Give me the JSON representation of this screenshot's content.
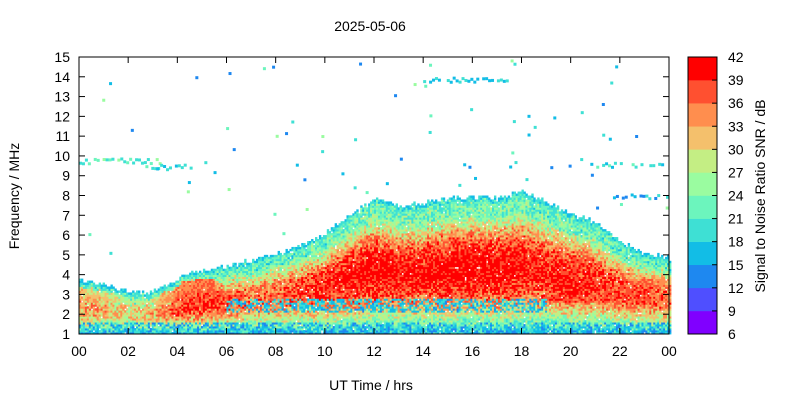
{
  "chart_data": {
    "type": "heatmap",
    "title": "2025-05-06",
    "xlabel": "UT Time / hrs",
    "ylabel": "Frequency / MHz",
    "colorbar_label": "Signal to Noise Ratio SNR / dB",
    "xlim": [
      0,
      24
    ],
    "ylim": [
      1,
      15
    ],
    "x_tick_labels": [
      "00",
      "02",
      "04",
      "06",
      "08",
      "10",
      "12",
      "14",
      "16",
      "18",
      "20",
      "22",
      "00"
    ],
    "y_ticks": [
      1,
      2,
      3,
      4,
      5,
      6,
      7,
      8,
      9,
      10,
      11,
      12,
      13,
      14,
      15
    ],
    "colorbar": {
      "range": [
        6,
        42
      ],
      "ticks": [
        6,
        9,
        12,
        15,
        18,
        21,
        24,
        27,
        30,
        33,
        36,
        39,
        42
      ],
      "colors": [
        "#8000ff",
        "#4f4fff",
        "#1e88f0",
        "#12bde6",
        "#3ee0d4",
        "#6cf5bd",
        "#9afca0",
        "#c4ee84",
        "#f4c06c",
        "#ff8e4e",
        "#ff5030",
        "#ff0000"
      ]
    },
    "series": [
      {
        "x_hours": [
          0,
          1,
          2,
          3,
          4,
          5,
          6,
          7,
          8,
          9,
          10,
          11,
          12,
          13,
          14,
          15,
          16,
          17,
          18,
          19,
          20,
          21,
          22,
          23,
          24
        ],
        "upper_edge_mhz": [
          3.7,
          3.4,
          3.1,
          3.1,
          3.8,
          4.2,
          4.4,
          4.7,
          5.0,
          5.4,
          6.0,
          7.0,
          7.8,
          7.4,
          7.6,
          7.8,
          7.9,
          7.8,
          8.2,
          7.6,
          7.0,
          6.6,
          5.6,
          5.0,
          4.8
        ],
        "peak_snr_db": [
          34,
          33,
          30,
          32,
          38,
          39,
          38,
          36,
          36,
          38,
          40,
          41,
          42,
          41,
          41,
          42,
          42,
          42,
          41,
          40,
          40,
          39,
          38,
          37,
          36
        ]
      }
    ],
    "sporadic_e_traces": [
      {
        "x_start": 0.0,
        "x_end": 3.3,
        "freq_mhz": 9.8,
        "snr_db": 22
      },
      {
        "x_start": 2.7,
        "x_end": 4.6,
        "freq_mhz": 9.5,
        "snr_db": 19
      },
      {
        "x_start": 20.8,
        "x_end": 24.0,
        "freq_mhz": 9.6,
        "snr_db": 20
      },
      {
        "x_start": 21.6,
        "x_end": 24.0,
        "freq_mhz": 8.0,
        "snr_db": 17
      },
      {
        "x_start": 14.0,
        "x_end": 17.6,
        "freq_mhz": 13.9,
        "snr_db": 18
      }
    ]
  }
}
